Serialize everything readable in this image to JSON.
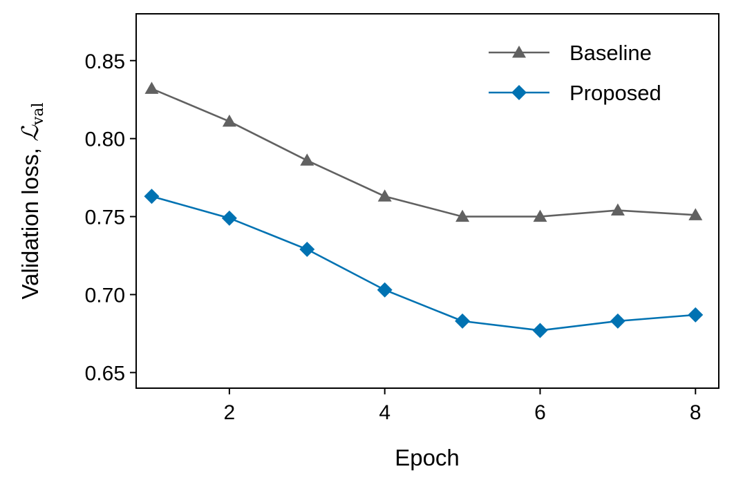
{
  "chart_data": {
    "type": "line",
    "xlabel": "Epoch",
    "ylabel": {
      "text": "Validation loss, ",
      "symbol": "ℒ",
      "subscript": "val"
    },
    "xlim": [
      0.8,
      8.3
    ],
    "ylim": [
      0.64,
      0.88
    ],
    "xticks": [
      2,
      4,
      6,
      8
    ],
    "yticks": [
      0.65,
      0.7,
      0.75,
      0.8,
      0.85
    ],
    "ytick_labels": [
      "0.65",
      "0.70",
      "0.75",
      "0.80",
      "0.85"
    ],
    "legend_position": "top-right",
    "grid": false,
    "x": [
      1,
      2,
      3,
      4,
      5,
      6,
      7,
      8
    ],
    "series": [
      {
        "name": "Baseline",
        "color": "#616161",
        "marker": "triangle",
        "values": [
          0.832,
          0.811,
          0.786,
          0.763,
          0.75,
          0.75,
          0.754,
          0.751
        ]
      },
      {
        "name": "Proposed",
        "color": "#0072b2",
        "marker": "diamond",
        "values": [
          0.763,
          0.749,
          0.729,
          0.703,
          0.683,
          0.677,
          0.683,
          0.687
        ]
      }
    ]
  }
}
